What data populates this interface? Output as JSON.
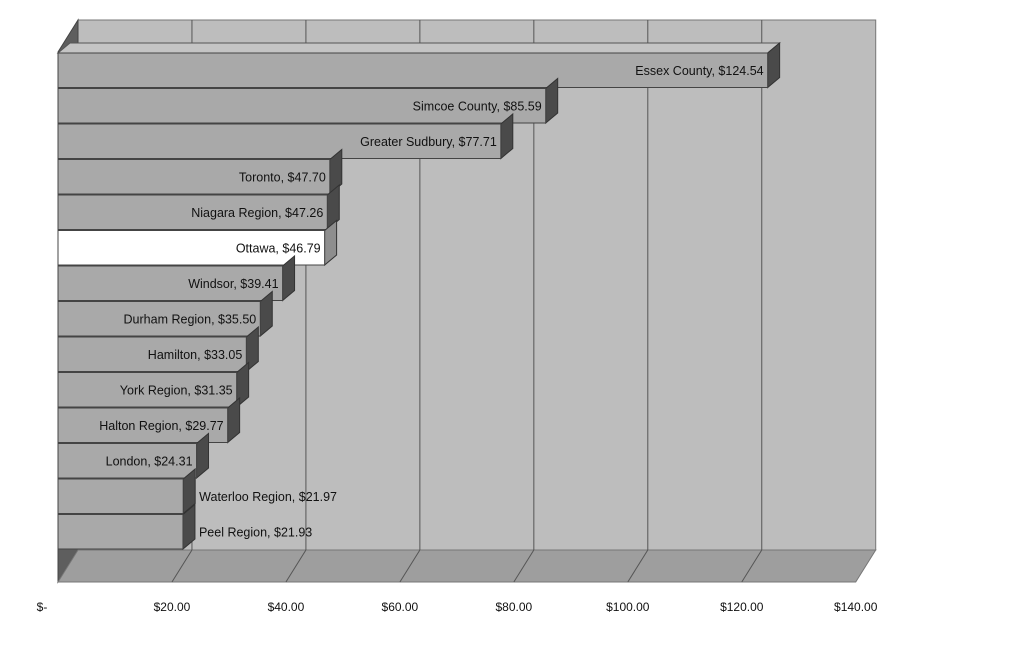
{
  "chart_data": {
    "type": "bar",
    "orientation": "horizontal",
    "style": "3d",
    "categories": [
      "Essex County",
      "Simcoe County",
      "Greater Sudbury",
      "Toronto",
      "Niagara Region",
      "Ottawa",
      "Windsor",
      "Durham Region",
      "Hamilton",
      "York Region",
      "Halton Region",
      "London",
      "Waterloo Region",
      "Peel Region"
    ],
    "values": [
      124.54,
      85.59,
      77.71,
      47.7,
      47.26,
      46.79,
      39.41,
      35.5,
      33.05,
      31.35,
      29.77,
      24.31,
      21.97,
      21.93
    ],
    "labels": [
      "Essex County, $124.54",
      "Simcoe County, $85.59",
      "Greater Sudbury, $77.71",
      "Toronto, $47.70",
      "Niagara Region, $47.26",
      "Ottawa, $46.79",
      "Windsor, $39.41",
      "Durham Region, $35.50",
      "Hamilton, $33.05",
      "York Region, $31.35",
      "Halton Region, $29.77",
      "London, $24.31",
      "Waterloo Region, $21.97",
      "Peel Region, $21.93"
    ],
    "highlighted": "Ottawa",
    "xlim": [
      0,
      140
    ],
    "xticks": [
      0,
      20,
      40,
      60,
      80,
      100,
      120,
      140
    ],
    "xtick_labels": [
      "$-",
      "$20.00",
      "$40.00",
      "$60.00",
      "$80.00",
      "$100.00",
      "$120.00",
      "$140.00"
    ],
    "grid": true,
    "title": "",
    "xlabel": "",
    "ylabel": "",
    "colors": {
      "bar_face": "#a9a9a9",
      "bar_side": "#4a4a4a",
      "bar_top": "#c4c4c4",
      "highlight_face": "#ffffff",
      "highlight_side": "#8e8e8e",
      "wall": "#bdbdbd",
      "side_wall": "#5e5e5e",
      "floor": "#9e9e9e",
      "grid": "#555555"
    }
  }
}
